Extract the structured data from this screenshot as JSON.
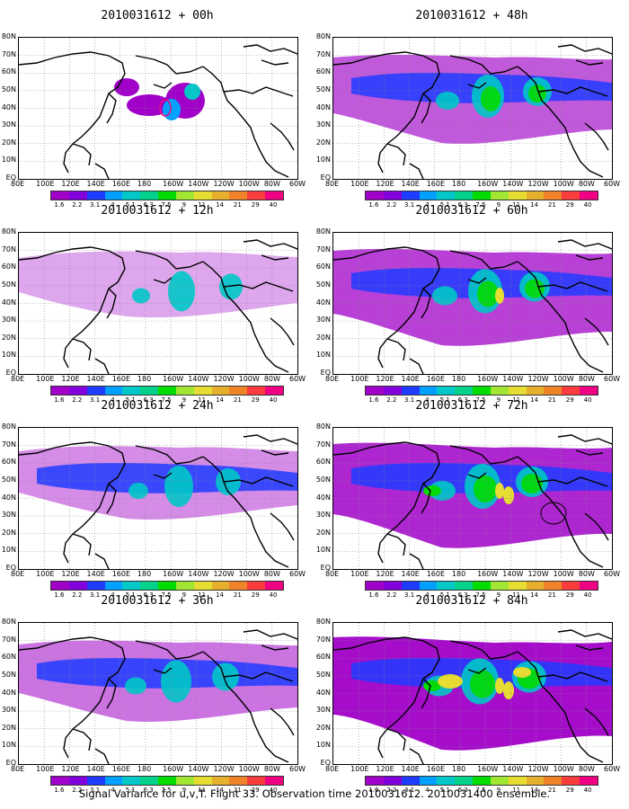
{
  "caption": "Signal Variance for u,v,T. Flight 33. Observation time 2010031612. 2010031400 ensemble.",
  "panels": [
    {
      "title": "2010031612 + 00h",
      "intensity": 0
    },
    {
      "title": "2010031612 + 12h",
      "intensity": 1
    },
    {
      "title": "2010031612 + 24h",
      "intensity": 2
    },
    {
      "title": "2010031612 + 36h",
      "intensity": 3
    },
    {
      "title": "2010031612 + 48h",
      "intensity": 4
    },
    {
      "title": "2010031612 + 60h",
      "intensity": 5
    },
    {
      "title": "2010031612 + 72h",
      "intensity": 6
    },
    {
      "title": "2010031612 + 84h",
      "intensity": 7
    }
  ],
  "lat_labels": [
    "80N",
    "70N",
    "60N",
    "50N",
    "40N",
    "30N",
    "20N",
    "10N",
    "EQ"
  ],
  "lon_labels": [
    "80E",
    "100E",
    "120E",
    "140E",
    "160E",
    "180",
    "160W",
    "140W",
    "120W",
    "100W",
    "80W",
    "60W"
  ],
  "colorbar": {
    "labels": [
      "1.6",
      "2.2",
      "3.1",
      "4",
      "5.1",
      "6.3",
      "7.5",
      "9",
      "11",
      "14",
      "21",
      "29",
      "40"
    ],
    "colors": [
      "#a000c8",
      "#8200dc",
      "#1e3cff",
      "#00a0ff",
      "#00c8c8",
      "#00d28c",
      "#00dc00",
      "#a0e632",
      "#e6dc32",
      "#e6af2d",
      "#f08228",
      "#fa3c3c",
      "#f00082"
    ]
  }
}
